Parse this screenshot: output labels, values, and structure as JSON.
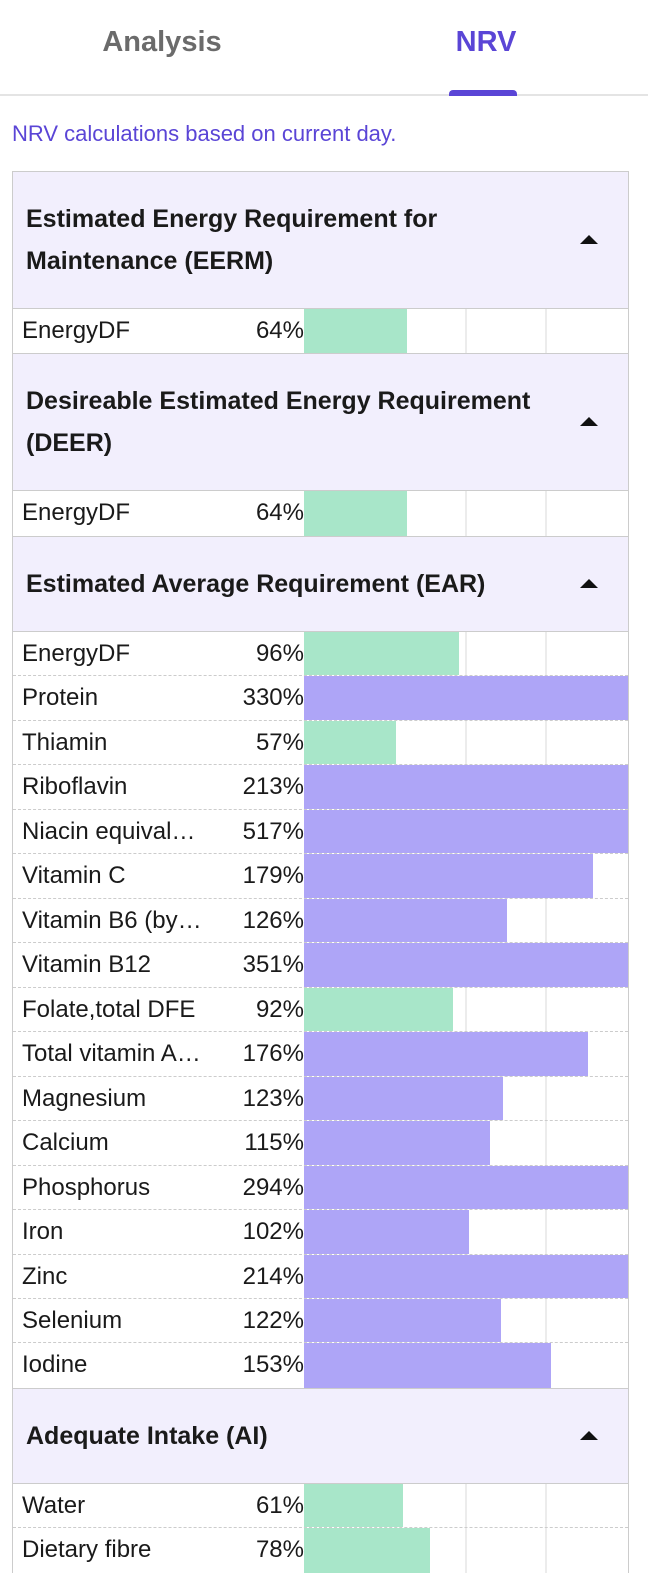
{
  "tabs": [
    "Analysis",
    "NRV"
  ],
  "active_tab": 1,
  "note": "NRV calculations based on current day.",
  "bar_scale": {
    "xlim": [
      0,
      200
    ],
    "gridlines": [
      50,
      100,
      150
    ],
    "threshold": 100,
    "below_color": "#a8e6c9",
    "above_color": "#aea5f7"
  },
  "sections": [
    {
      "title": "Estimated Energy Requirement for Maintenance (EERM)",
      "rows": [
        {
          "name": "EnergyDF",
          "value": 64,
          "label": "64%"
        }
      ]
    },
    {
      "title": "Desireable Estimated Energy Requirement (DEER)",
      "rows": [
        {
          "name": "EnergyDF",
          "value": 64,
          "label": "64%"
        }
      ]
    },
    {
      "title": "Estimated Average Requirement (EAR)",
      "rows": [
        {
          "name": "EnergyDF",
          "value": 96,
          "label": "96%"
        },
        {
          "name": "Protein",
          "value": 330,
          "label": "330%"
        },
        {
          "name": "Thiamin",
          "value": 57,
          "label": "57%"
        },
        {
          "name": "Riboflavin",
          "value": 213,
          "label": "213%"
        },
        {
          "name": "Niacin equival…",
          "value": 517,
          "label": "517%"
        },
        {
          "name": "Vitamin C",
          "value": 179,
          "label": "179%"
        },
        {
          "name": "Vitamin B6 (by…",
          "value": 126,
          "label": "126%"
        },
        {
          "name": "Vitamin B12",
          "value": 351,
          "label": "351%"
        },
        {
          "name": "Folate,total DFE",
          "value": 92,
          "label": "92%"
        },
        {
          "name": "Total vitamin A…",
          "value": 176,
          "label": "176%"
        },
        {
          "name": "Magnesium",
          "value": 123,
          "label": "123%"
        },
        {
          "name": "Calcium",
          "value": 115,
          "label": "115%"
        },
        {
          "name": "Phosphorus",
          "value": 294,
          "label": "294%"
        },
        {
          "name": "Iron",
          "value": 102,
          "label": "102%"
        },
        {
          "name": "Zinc",
          "value": 214,
          "label": "214%"
        },
        {
          "name": "Selenium",
          "value": 122,
          "label": "122%"
        },
        {
          "name": "Iodine",
          "value": 153,
          "label": "153%"
        }
      ]
    },
    {
      "title": "Adequate Intake (AI)",
      "rows": [
        {
          "name": "Water",
          "value": 61,
          "label": "61%"
        },
        {
          "name": "Dietary fibre",
          "value": 78,
          "label": "78%"
        }
      ]
    }
  ]
}
